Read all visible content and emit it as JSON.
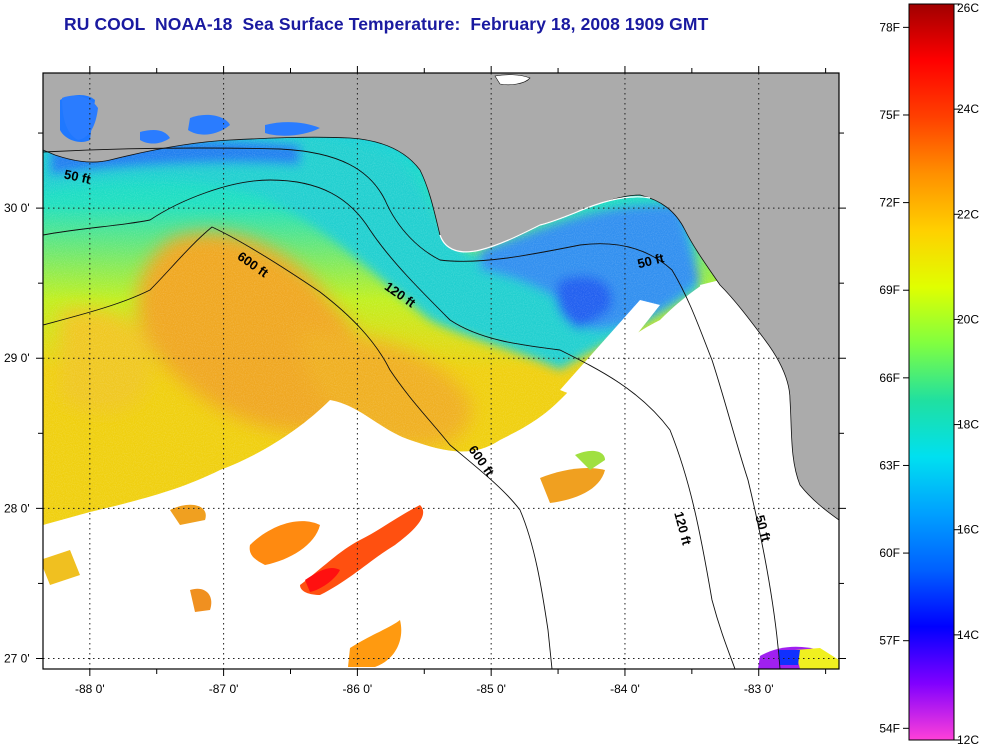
{
  "title": "RU COOL  NOAA-18  Sea Surface Temperature:  February 18, 2008 1909 GMT",
  "map": {
    "lat_labels": [
      "30 0'",
      "29 0'",
      "28 0'",
      "27 0'"
    ],
    "lon_labels": [
      "-88 0'",
      "-87 0'",
      "-86 0'",
      "-85 0'",
      "-84 0'",
      "-83 0'"
    ],
    "lat_values": [
      30,
      29,
      28,
      27
    ],
    "lon_values": [
      -88,
      -87,
      -86,
      -85,
      -84,
      -83
    ],
    "extent": {
      "lon_min": -88.35,
      "lon_max": -82.4,
      "lat_min": 26.93,
      "lat_max": 30.9
    },
    "contour_labels": [
      {
        "text": "50 ft",
        "lon": -88.1,
        "lat": 30.18,
        "angle": 12
      },
      {
        "text": "600 ft",
        "lon": -86.8,
        "lat": 29.6,
        "angle": 35
      },
      {
        "text": "120 ft",
        "lon": -85.7,
        "lat": 29.4,
        "angle": 35
      },
      {
        "text": "50 ft",
        "lon": -83.8,
        "lat": 29.62,
        "angle": -14
      },
      {
        "text": "600 ft",
        "lon": -85.1,
        "lat": 28.3,
        "angle": 55
      },
      {
        "text": "120 ft",
        "lon": -83.6,
        "lat": 27.86,
        "angle": 75
      },
      {
        "text": "50 ft",
        "lon": -83.0,
        "lat": 27.86,
        "angle": 75
      }
    ]
  },
  "colorbar": {
    "min_c": 12,
    "max_c": 26,
    "celsius_labels": [
      {
        "text": "26C",
        "value": 26
      },
      {
        "text": "24C",
        "value": 24
      },
      {
        "text": "22C",
        "value": 22
      },
      {
        "text": "20C",
        "value": 20
      },
      {
        "text": "18C",
        "value": 18
      },
      {
        "text": "16C",
        "value": 16
      },
      {
        "text": "14C",
        "value": 14
      },
      {
        "text": "12C",
        "value": 12
      }
    ],
    "fahrenheit_labels": [
      {
        "text": "78F",
        "value": 78
      },
      {
        "text": "75F",
        "value": 75
      },
      {
        "text": "72F",
        "value": 72
      },
      {
        "text": "69F",
        "value": 69
      },
      {
        "text": "66F",
        "value": 66
      },
      {
        "text": "63F",
        "value": 63
      },
      {
        "text": "60F",
        "value": 60
      },
      {
        "text": "57F",
        "value": 57
      },
      {
        "text": "54F",
        "value": 54
      }
    ],
    "stops": [
      "#ff40d8",
      "#8000ff",
      "#0000ff",
      "#0060ff",
      "#00a0ff",
      "#00e0f0",
      "#20e0a0",
      "#80ff40",
      "#e0ff00",
      "#ffd000",
      "#ff9000",
      "#ff4000",
      "#ff0000",
      "#a00000"
    ]
  },
  "colors": {
    "land": "#ababab",
    "cloud": "#ffffff",
    "title": "#1a1aa0"
  }
}
